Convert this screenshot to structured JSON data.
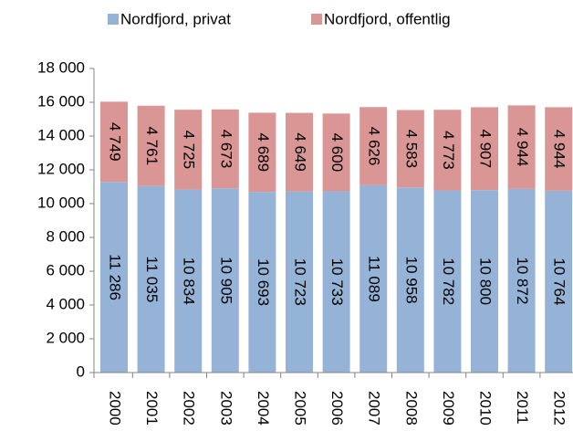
{
  "chart_data": {
    "type": "stacked_bar",
    "categories": [
      "2000",
      "2001",
      "2002",
      "2003",
      "2004",
      "2005",
      "2006",
      "2007",
      "2008",
      "2009",
      "2010",
      "2011",
      "2012"
    ],
    "series": [
      {
        "name": "Nordfjord, privat",
        "color": "#95b3d7",
        "values": [
          11286,
          11035,
          10834,
          10905,
          10693,
          10723,
          10733,
          11089,
          10958,
          10782,
          10800,
          10872,
          10764
        ],
        "value_labels": [
          "11 286",
          "11 035",
          "10 834",
          "10 905",
          "10 693",
          "10 723",
          "10 733",
          "11 089",
          "10 958",
          "10 782",
          "10 800",
          "10 872",
          "10 764"
        ]
      },
      {
        "name": "Nordfjord, offentlig",
        "color": "#d99694",
        "values": [
          4749,
          4761,
          4725,
          4673,
          4689,
          4649,
          4600,
          4626,
          4583,
          4773,
          4907,
          4944,
          4944
        ],
        "value_labels": [
          "4 749",
          "4 761",
          "4 725",
          "4 673",
          "4 689",
          "4 649",
          "4 600",
          "4 626",
          "4 583",
          "4 773",
          "4 907",
          "4 944",
          "4 944"
        ]
      }
    ],
    "ylim": [
      0,
      18000
    ],
    "yticks": [
      0,
      {
        "value": 2000,
        "label": "2 000"
      },
      {
        "value": 4000,
        "label": "4 000"
      },
      {
        "value": 6000,
        "label": "6 000"
      },
      {
        "value": 8000,
        "label": "8 000"
      },
      {
        "value": 10000,
        "label": "10 000"
      },
      {
        "value": 12000,
        "label": "12 000"
      },
      {
        "value": 14000,
        "label": "14 000"
      },
      {
        "value": 16000,
        "label": "16 000"
      },
      {
        "value": 18000,
        "label": "18 000"
      }
    ],
    "legend": "top"
  }
}
